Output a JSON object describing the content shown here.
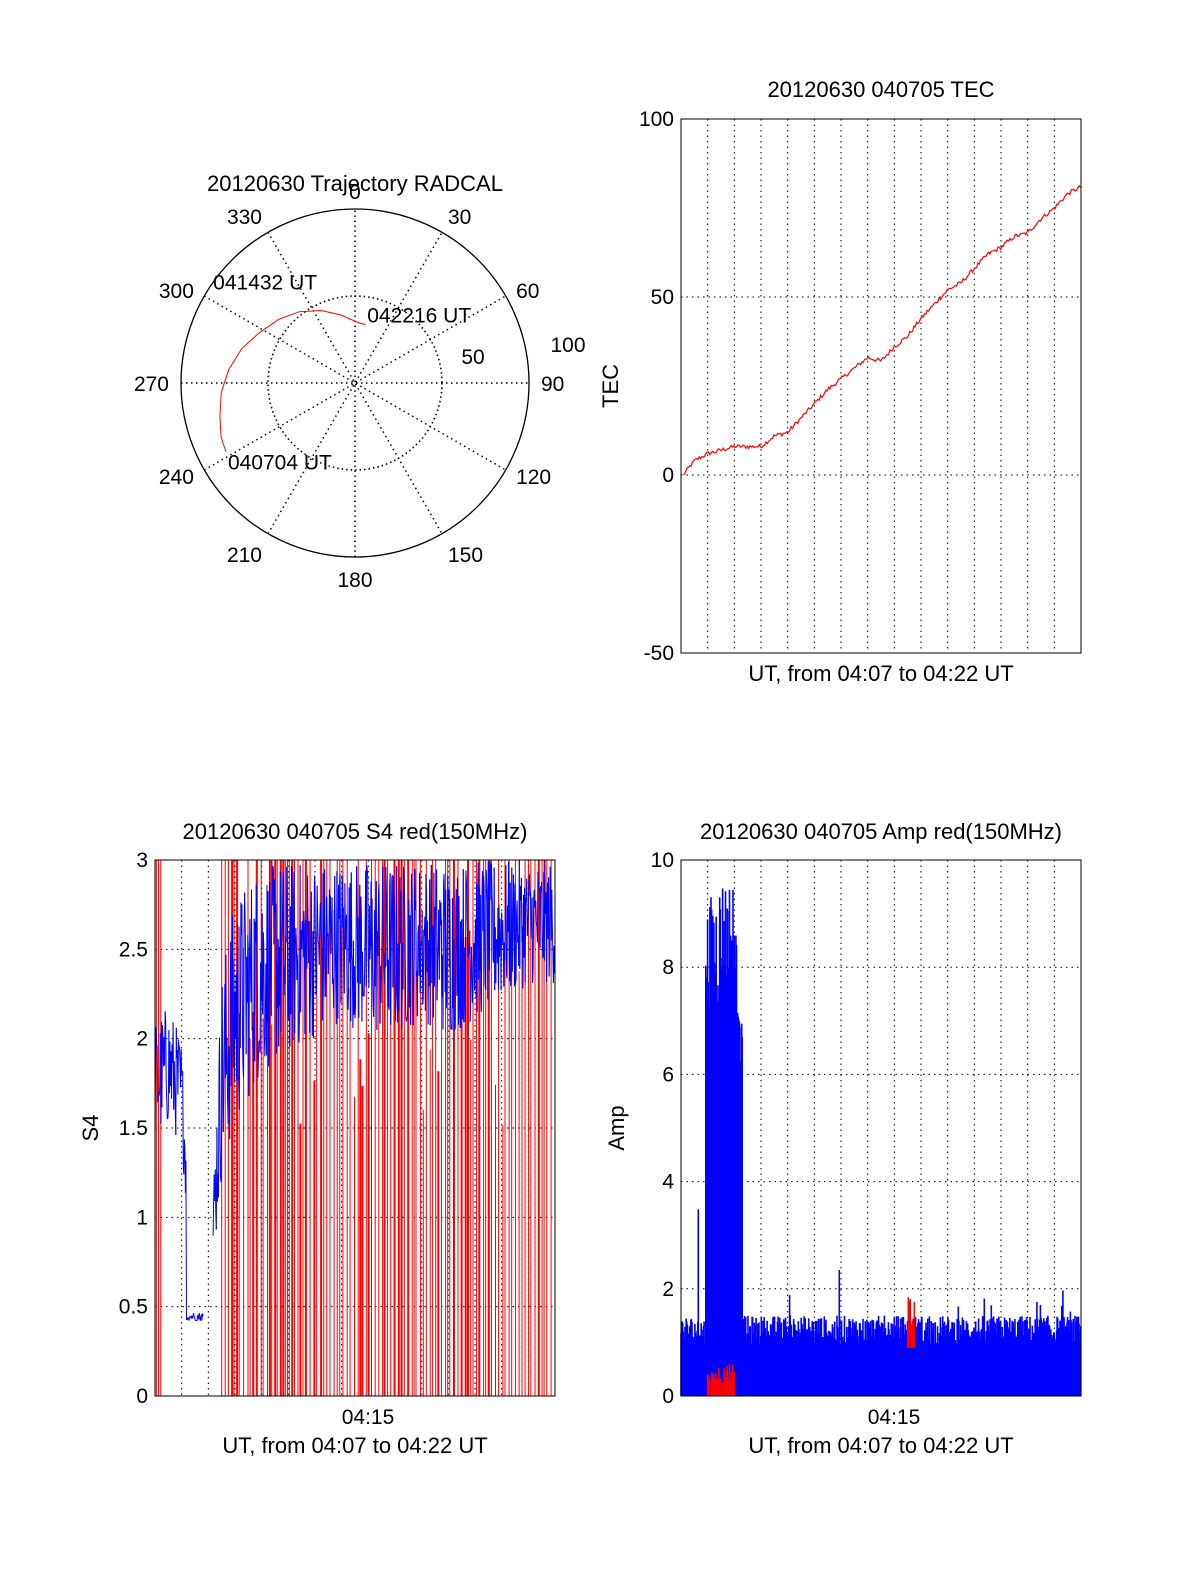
{
  "chart_data": [
    {
      "panel": "trajectory",
      "type": "scatter",
      "title": "20120630 Trajectory RADCAL",
      "projection": "polar",
      "radial_range": [
        0,
        100
      ],
      "radial_tick_labels": [
        "50",
        "100"
      ],
      "azimuth_tick_labels": [
        "0",
        "30",
        "60",
        "90",
        "120",
        "150",
        "180",
        "210",
        "240",
        "270",
        "300",
        "330"
      ],
      "series_color": "#ff0000",
      "path": [
        {
          "az": 242,
          "zen": 84
        },
        {
          "az": 248,
          "zen": 83
        },
        {
          "az": 256,
          "zen": 80
        },
        {
          "az": 266,
          "zen": 77
        },
        {
          "az": 276,
          "zen": 73
        },
        {
          "az": 287,
          "zen": 68
        },
        {
          "az": 298,
          "zen": 62
        },
        {
          "az": 310,
          "zen": 57
        },
        {
          "az": 322,
          "zen": 52
        },
        {
          "az": 335,
          "zen": 46
        },
        {
          "az": 348,
          "zen": 40
        },
        {
          "az": 2,
          "zen": 35
        },
        {
          "az": 10,
          "zen": 34
        }
      ],
      "annotations": [
        {
          "text": "040704 UT",
          "az": 242,
          "zen": 84
        },
        {
          "text": "041432 UT",
          "az": 317,
          "zen": 42
        },
        {
          "text": "042216 UT",
          "az": 10,
          "zen": 34
        }
      ],
      "grid": true
    },
    {
      "panel": "tec",
      "type": "line",
      "title": "20120630 040705 TEC",
      "xlabel": "UT, from 04:07 to 04:22 UT",
      "ylabel": "TEC",
      "xlim": [
        "04:07",
        "04:22"
      ],
      "ylim": [
        -50,
        100
      ],
      "yticks": [
        -50,
        0,
        50,
        100
      ],
      "grid": true,
      "series": [
        {
          "color": "#ff0000",
          "x": [
            "04:07:05",
            "04:07:30",
            "04:08:00",
            "04:08:30",
            "04:09:00",
            "04:09:30",
            "04:10:00",
            "04:10:30",
            "04:11:00",
            "04:11:30",
            "04:12:00",
            "04:12:30",
            "04:13:00",
            "04:13:30",
            "04:14:00",
            "04:14:30",
            "04:15:00",
            "04:15:30",
            "04:16:00",
            "04:16:30",
            "04:17:00",
            "04:17:30",
            "04:18:00",
            "04:18:30",
            "04:19:00",
            "04:19:30",
            "04:20:00",
            "04:20:30",
            "04:21:00",
            "04:21:30",
            "04:22:00"
          ],
          "values": [
            0,
            4,
            6,
            7,
            8,
            8,
            8,
            11,
            12,
            16,
            20,
            24,
            27,
            30,
            33,
            32,
            36,
            39,
            44,
            48,
            52,
            54,
            58,
            62,
            64,
            67,
            68,
            72,
            75,
            79,
            81
          ]
        }
      ]
    },
    {
      "panel": "s4",
      "type": "line",
      "title": "20120630 040705 S4 red(150MHz)",
      "xlabel": "UT, from 04:07 to 04:22 UT",
      "ylabel": "S4",
      "xlim": [
        "04:07",
        "04:22"
      ],
      "xticks": [
        "04:15"
      ],
      "ylim": [
        0,
        3
      ],
      "yticks": [
        0,
        0.5,
        1,
        1.5,
        2,
        2.5,
        3
      ],
      "ytick_labels": [
        "0",
        "0.5",
        "1",
        "1.5",
        "2",
        "2.5",
        "3"
      ],
      "grid": true,
      "series": [
        {
          "color": "#0000ff",
          "x": [
            "04:07:00",
            "04:07:30",
            "04:08:00",
            "04:08:30",
            "04:09:00",
            "04:09:30",
            "04:10:00",
            "04:11:00",
            "04:12:00",
            "04:13:00",
            "04:14:00",
            "04:15:00",
            "04:16:00",
            "04:17:00",
            "04:18:00",
            "04:19:00",
            "04:20:00",
            "04:21:00",
            "04:22:00"
          ],
          "values": [
            1.7,
            1.8,
            1.6,
            0.44,
            0.44,
            1.5,
            1.9,
            2.3,
            2.5,
            2.6,
            2.7,
            2.6,
            2.7,
            2.8,
            2.7,
            2.8,
            2.9,
            2.9,
            2.9
          ],
          "range_low": [
            1.4,
            1.5,
            1.4,
            0.4,
            0.4,
            1.2,
            1.5,
            1.8,
            1.9,
            2.0,
            2.1,
            2.0,
            2.0,
            2.1,
            2.0,
            2.1,
            2.2,
            2.3,
            2.3
          ],
          "range_high": [
            2.1,
            2.2,
            2.0,
            0.48,
            0.48,
            2.4,
            2.8,
            3.0,
            3.0,
            3.0,
            3.0,
            3.0,
            3.0,
            3.0,
            3.0,
            3.0,
            3.0,
            3.0,
            3.0
          ]
        },
        {
          "color": "#ff0000",
          "note_value_range": [
            0,
            3
          ],
          "x": [
            "04:09:30",
            "04:22:00"
          ],
          "values": [
            0,
            3
          ]
        }
      ]
    },
    {
      "panel": "amp",
      "type": "line",
      "title": "20120630 040705 Amp red(150MHz)",
      "xlabel": "UT, from 04:07 to 04:22 UT",
      "ylabel": "Amp",
      "xlim": [
        "04:07",
        "04:22"
      ],
      "xticks": [
        "04:15"
      ],
      "ylim": [
        0,
        10
      ],
      "yticks": [
        0,
        2,
        4,
        6,
        8,
        10
      ],
      "grid": true,
      "series": [
        {
          "color": "#0000ff",
          "x": [
            "04:07:00",
            "04:07:30",
            "04:08:00",
            "04:08:30",
            "04:09:00",
            "04:09:30",
            "04:10:00",
            "04:10:30",
            "04:11:00",
            "04:11:30",
            "04:12:00",
            "04:12:30",
            "04:13:00",
            "04:13:30",
            "04:14:00",
            "04:14:30",
            "04:15:00",
            "04:15:30",
            "04:16:00",
            "04:16:30",
            "04:17:00",
            "04:17:30",
            "04:18:00",
            "04:18:30",
            "04:19:00",
            "04:19:30",
            "04:20:00",
            "04:20:30",
            "04:21:00",
            "04:21:30",
            "04:22:00"
          ],
          "values": [
            1.6,
            1.8,
            9.2,
            9.8,
            9.7,
            2.2,
            1.4,
            1.6,
            1.9,
            1.7,
            1.8,
            2.1,
            2.9,
            1.7,
            1.6,
            1.9,
            1.8,
            1.7,
            1.9,
            2.7,
            1.8,
            1.6,
            1.8,
            2.1,
            1.7,
            1.9,
            2.1,
            1.8,
            2.2,
            2.3,
            1.6
          ]
        },
        {
          "color": "#ff0000",
          "x": [
            "04:08:00",
            "04:08:30",
            "04:09:00",
            "04:15:30",
            "04:15:45"
          ],
          "values": [
            0.3,
            0.5,
            0.4,
            1.9,
            1.6
          ]
        }
      ]
    }
  ]
}
